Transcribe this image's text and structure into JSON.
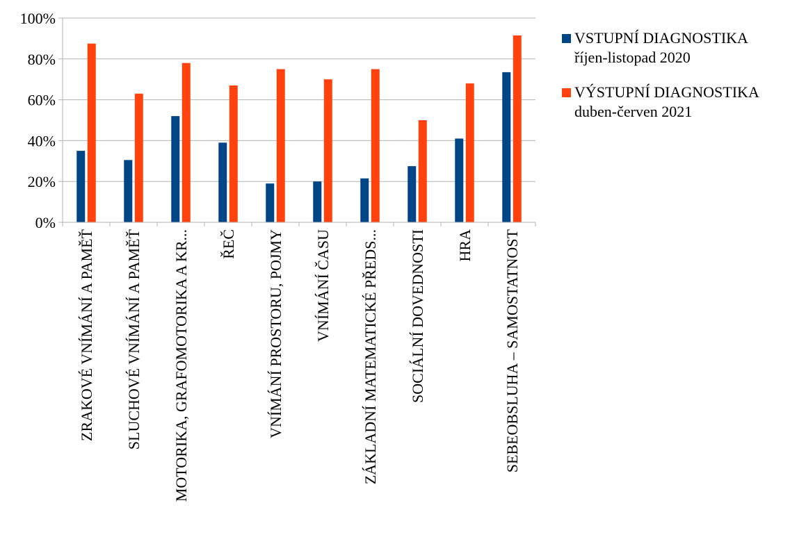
{
  "chart_data": {
    "type": "bar",
    "categories": [
      "ZRAKOVÉ VNÍMÁNÍ A PAMĚŤ",
      "SLUCHOVÉ VNÍMÁNÍ A PAMĚŤ",
      "MOTORIKA, GRAFOMOTORIKA A KR...",
      "ŘEČ",
      "VNÍMÁNÍ PROSTORU, POJMY",
      "VNÍMÁNÍ ČASU",
      "ZÁKLADNÍ MATEMATICKÉ PŘEDS...",
      "SOCIÁLNÍ DOVEDNOSTI",
      "HRA",
      "SEBEOBSLUHA – SAMOSTATNOST"
    ],
    "series": [
      {
        "name": "VSTUPNÍ DIAGNOSTIKA",
        "name_line2": "říjen-listopad 2020",
        "color": "#004586",
        "values": [
          0.35,
          0.305,
          0.52,
          0.39,
          0.19,
          0.2,
          0.215,
          0.275,
          0.41,
          0.735
        ]
      },
      {
        "name": "VÝSTUPNÍ DIAGNOSTIKA",
        "name_line2": "duben-červen 2021",
        "color": "#ff420e",
        "values": [
          0.875,
          0.63,
          0.78,
          0.67,
          0.75,
          0.7,
          0.75,
          0.5,
          0.68,
          0.915
        ]
      }
    ],
    "ylim": [
      0,
      1
    ],
    "yticks": [
      "0%",
      "20%",
      "40%",
      "60%",
      "80%",
      "100%"
    ],
    "grid": true,
    "legend": "right",
    "title": "",
    "xlabel": "",
    "ylabel": ""
  }
}
